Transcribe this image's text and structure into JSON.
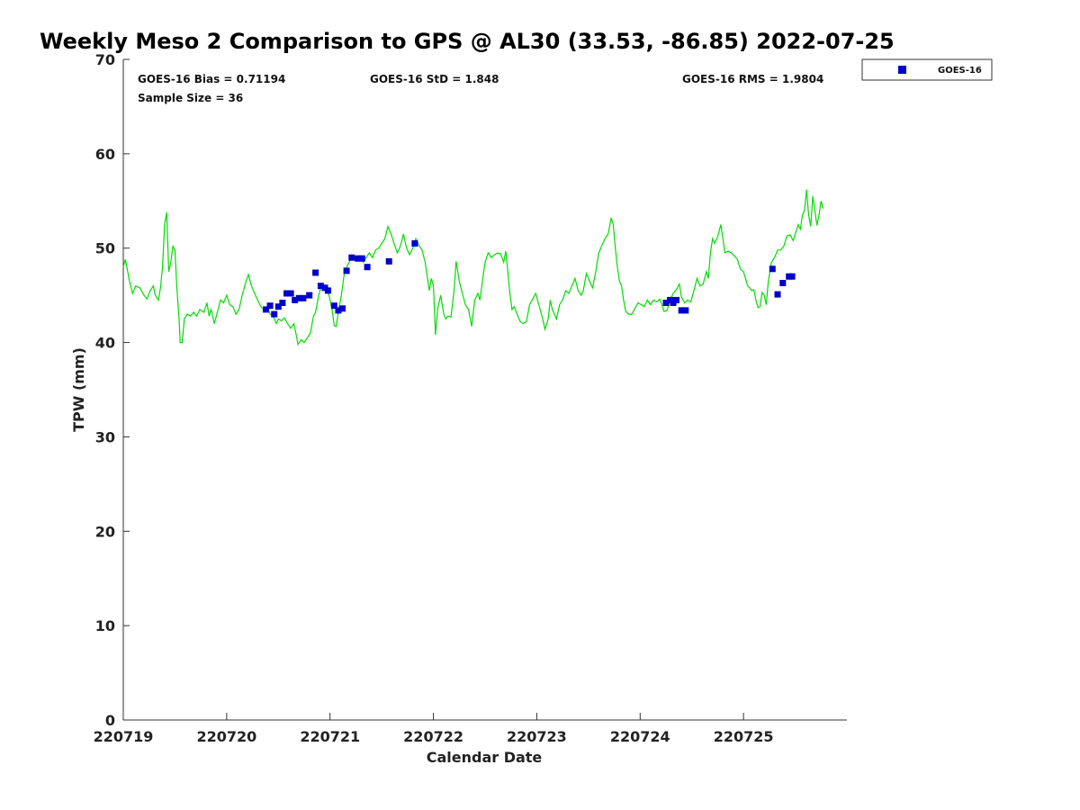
{
  "chart_data": {
    "type": "scatter",
    "title": "Weekly Meso 2 Comparison to GPS @ AL30 (33.53, -86.85) 2022-07-25",
    "xlabel": "Calendar Date",
    "ylabel": "TPW (mm)",
    "xlim": [
      0,
      7
    ],
    "ylim": [
      0,
      70
    ],
    "x_ticks": [
      0,
      1,
      2,
      3,
      4,
      5,
      6
    ],
    "x_tick_labels": [
      "220719",
      "220720",
      "220721",
      "220722",
      "220723",
      "220724",
      "220725"
    ],
    "y_ticks": [
      0,
      10,
      20,
      30,
      40,
      50,
      60,
      70
    ],
    "y_tick_labels": [
      "0",
      "10",
      "20",
      "30",
      "40",
      "50",
      "60",
      "70"
    ],
    "x_unit_note": "x values are days after 2022-07-19 00Z",
    "grid": false,
    "legend_position": "top-right (outside plot)",
    "stats": {
      "bias": "GOES-16 Bias = 0.71194",
      "std": "GOES-16 StD = 1.848",
      "rms": "GOES-16 RMS = 1.9804",
      "n": "Sample Size = 36"
    },
    "series": [
      {
        "name": "GPS",
        "type": "line",
        "color": "#00dd00",
        "points": [
          [
            0.0,
            48.0
          ],
          [
            0.02,
            48.8
          ],
          [
            0.06,
            46.5
          ],
          [
            0.09,
            45.2
          ],
          [
            0.12,
            46.0
          ],
          [
            0.16,
            45.8
          ],
          [
            0.2,
            45.0
          ],
          [
            0.23,
            44.6
          ],
          [
            0.26,
            45.5
          ],
          [
            0.29,
            46.0
          ],
          [
            0.31,
            45.0
          ],
          [
            0.34,
            44.5
          ],
          [
            0.36,
            45.8
          ],
          [
            0.38,
            48.0
          ],
          [
            0.4,
            52.5
          ],
          [
            0.42,
            53.8
          ],
          [
            0.44,
            47.5
          ],
          [
            0.46,
            48.5
          ],
          [
            0.48,
            50.2
          ],
          [
            0.5,
            49.8
          ],
          [
            0.52,
            45.5
          ],
          [
            0.54,
            42.5
          ],
          [
            0.55,
            40.0
          ],
          [
            0.57,
            40.0
          ],
          [
            0.59,
            42.5
          ],
          [
            0.62,
            43.0
          ],
          [
            0.65,
            42.8
          ],
          [
            0.68,
            43.2
          ],
          [
            0.71,
            42.8
          ],
          [
            0.74,
            43.5
          ],
          [
            0.78,
            43.2
          ],
          [
            0.81,
            44.2
          ],
          [
            0.83,
            42.8
          ],
          [
            0.85,
            43.5
          ],
          [
            0.88,
            42.0
          ],
          [
            0.91,
            43.2
          ],
          [
            0.94,
            44.5
          ],
          [
            0.97,
            44.2
          ],
          [
            1.0,
            45.0
          ],
          [
            1.03,
            44.0
          ],
          [
            1.06,
            43.8
          ],
          [
            1.09,
            43.0
          ],
          [
            1.12,
            43.5
          ],
          [
            1.15,
            45.0
          ],
          [
            1.18,
            46.2
          ],
          [
            1.21,
            47.2
          ],
          [
            1.24,
            46.0
          ],
          [
            1.27,
            45.2
          ],
          [
            1.3,
            44.5
          ],
          [
            1.33,
            43.8
          ],
          [
            1.36,
            43.5
          ],
          [
            1.39,
            43.8
          ],
          [
            1.42,
            43.0
          ],
          [
            1.45,
            42.8
          ],
          [
            1.48,
            42.0
          ],
          [
            1.5,
            42.5
          ],
          [
            1.53,
            42.3
          ],
          [
            1.56,
            42.6
          ],
          [
            1.59,
            42.0
          ],
          [
            1.62,
            41.5
          ],
          [
            1.65,
            42.0
          ],
          [
            1.67,
            41.0
          ],
          [
            1.69,
            39.8
          ],
          [
            1.72,
            40.3
          ],
          [
            1.75,
            40.0
          ],
          [
            1.78,
            40.5
          ],
          [
            1.81,
            41.0
          ],
          [
            1.84,
            42.8
          ],
          [
            1.86,
            43.2
          ],
          [
            1.89,
            45.0
          ],
          [
            1.92,
            46.2
          ],
          [
            1.95,
            46.0
          ],
          [
            1.98,
            45.5
          ],
          [
            2.0,
            44.5
          ],
          [
            2.02,
            43.5
          ],
          [
            2.04,
            41.8
          ],
          [
            2.06,
            41.7
          ],
          [
            2.08,
            43.2
          ],
          [
            2.11,
            45.0
          ],
          [
            2.14,
            47.5
          ],
          [
            2.17,
            48.2
          ],
          [
            2.2,
            48.8
          ],
          [
            2.23,
            49.2
          ],
          [
            2.26,
            48.8
          ],
          [
            2.29,
            49.0
          ],
          [
            2.32,
            48.5
          ],
          [
            2.35,
            49.0
          ],
          [
            2.38,
            49.5
          ],
          [
            2.41,
            49.0
          ],
          [
            2.44,
            49.8
          ],
          [
            2.47,
            50.0
          ],
          [
            2.5,
            50.5
          ],
          [
            2.53,
            51.0
          ],
          [
            2.56,
            52.3
          ],
          [
            2.59,
            51.5
          ],
          [
            2.62,
            50.5
          ],
          [
            2.65,
            49.5
          ],
          [
            2.68,
            50.2
          ],
          [
            2.71,
            51.5
          ],
          [
            2.74,
            50.0
          ],
          [
            2.77,
            49.3
          ],
          [
            2.8,
            50.0
          ],
          [
            2.83,
            51.0
          ],
          [
            2.86,
            50.3
          ],
          [
            2.89,
            49.8
          ],
          [
            2.92,
            48.5
          ],
          [
            2.94,
            47.0
          ],
          [
            2.96,
            45.5
          ],
          [
            2.98,
            46.8
          ],
          [
            3.0,
            46.0
          ],
          [
            3.02,
            40.8
          ],
          [
            3.04,
            43.5
          ],
          [
            3.07,
            45.0
          ],
          [
            3.1,
            43.0
          ],
          [
            3.12,
            42.5
          ],
          [
            3.14,
            42.8
          ],
          [
            3.17,
            42.7
          ],
          [
            3.2,
            45.5
          ],
          [
            3.22,
            48.6
          ],
          [
            3.25,
            46.5
          ],
          [
            3.28,
            45.2
          ],
          [
            3.31,
            44.0
          ],
          [
            3.34,
            43.5
          ],
          [
            3.37,
            41.7
          ],
          [
            3.4,
            44.5
          ],
          [
            3.43,
            45.2
          ],
          [
            3.45,
            44.5
          ],
          [
            3.48,
            47.0
          ],
          [
            3.5,
            48.5
          ],
          [
            3.53,
            49.5
          ],
          [
            3.56,
            49.0
          ],
          [
            3.59,
            49.3
          ],
          [
            3.62,
            49.5
          ],
          [
            3.65,
            49.4
          ],
          [
            3.68,
            48.5
          ],
          [
            3.7,
            49.7
          ],
          [
            3.72,
            47.5
          ],
          [
            3.74,
            45.2
          ],
          [
            3.76,
            43.5
          ],
          [
            3.78,
            43.8
          ],
          [
            3.81,
            43.0
          ],
          [
            3.84,
            42.2
          ],
          [
            3.87,
            42.0
          ],
          [
            3.9,
            42.2
          ],
          [
            3.93,
            44.0
          ],
          [
            3.96,
            44.6
          ],
          [
            3.99,
            45.2
          ],
          [
            4.02,
            44.0
          ],
          [
            4.05,
            42.8
          ],
          [
            4.08,
            41.4
          ],
          [
            4.11,
            42.5
          ],
          [
            4.13,
            44.5
          ],
          [
            4.15,
            43.5
          ],
          [
            4.17,
            43.0
          ],
          [
            4.19,
            42.5
          ],
          [
            4.22,
            44.0
          ],
          [
            4.25,
            44.5
          ],
          [
            4.28,
            45.5
          ],
          [
            4.31,
            45.2
          ],
          [
            4.34,
            46.0
          ],
          [
            4.37,
            46.8
          ],
          [
            4.4,
            45.5
          ],
          [
            4.43,
            45.0
          ],
          [
            4.45,
            45.5
          ],
          [
            4.48,
            47.3
          ],
          [
            4.51,
            46.5
          ],
          [
            4.54,
            45.8
          ],
          [
            4.57,
            47.5
          ],
          [
            4.6,
            49.5
          ],
          [
            4.63,
            50.3
          ],
          [
            4.66,
            51.0
          ],
          [
            4.69,
            51.5
          ],
          [
            4.72,
            53.2
          ],
          [
            4.74,
            52.5
          ],
          [
            4.76,
            50.0
          ],
          [
            4.78,
            48.0
          ],
          [
            4.8,
            46.5
          ],
          [
            4.82,
            46.0
          ],
          [
            4.84,
            44.5
          ],
          [
            4.86,
            43.3
          ],
          [
            4.89,
            43.0
          ],
          [
            4.92,
            43.0
          ],
          [
            4.95,
            43.6
          ],
          [
            4.98,
            44.2
          ],
          [
            5.01,
            44.0
          ],
          [
            5.04,
            43.8
          ],
          [
            5.07,
            44.5
          ],
          [
            5.1,
            44.0
          ],
          [
            5.13,
            44.5
          ],
          [
            5.16,
            44.3
          ],
          [
            5.19,
            44.6
          ],
          [
            5.21,
            44.0
          ],
          [
            5.23,
            43.3
          ],
          [
            5.26,
            43.4
          ],
          [
            5.29,
            44.5
          ],
          [
            5.32,
            45.2
          ],
          [
            5.35,
            45.6
          ],
          [
            5.38,
            46.2
          ],
          [
            5.4,
            44.8
          ],
          [
            5.43,
            44.2
          ],
          [
            5.46,
            44.5
          ],
          [
            5.49,
            44.3
          ],
          [
            5.52,
            45.5
          ],
          [
            5.55,
            46.8
          ],
          [
            5.58,
            46.0
          ],
          [
            5.61,
            46.2
          ],
          [
            5.64,
            47.5
          ],
          [
            5.66,
            46.8
          ],
          [
            5.68,
            49.5
          ],
          [
            5.7,
            51.0
          ],
          [
            5.72,
            50.5
          ],
          [
            5.75,
            51.2
          ],
          [
            5.78,
            52.5
          ],
          [
            5.8,
            51.0
          ],
          [
            5.82,
            49.5
          ],
          [
            5.85,
            49.7
          ],
          [
            5.88,
            49.5
          ],
          [
            5.91,
            49.2
          ],
          [
            5.94,
            48.8
          ],
          [
            5.97,
            47.8
          ],
          [
            6.0,
            47.5
          ],
          [
            6.02,
            46.8
          ],
          [
            6.04,
            46.0
          ],
          [
            6.06,
            45.8
          ],
          [
            6.08,
            45.5
          ],
          [
            6.1,
            45.6
          ],
          [
            6.12,
            44.5
          ],
          [
            6.14,
            43.7
          ],
          [
            6.16,
            43.8
          ],
          [
            6.18,
            45.3
          ],
          [
            6.2,
            45.0
          ],
          [
            6.22,
            44.0
          ],
          [
            6.24,
            46.5
          ],
          [
            6.27,
            48.5
          ],
          [
            6.3,
            49.0
          ],
          [
            6.33,
            49.8
          ],
          [
            6.36,
            49.8
          ],
          [
            6.39,
            50.2
          ],
          [
            6.42,
            51.3
          ],
          [
            6.45,
            51.4
          ],
          [
            6.48,
            50.8
          ],
          [
            6.5,
            51.5
          ],
          [
            6.53,
            52.5
          ],
          [
            6.55,
            52.0
          ],
          [
            6.57,
            53.5
          ],
          [
            6.59,
            54.0
          ],
          [
            6.61,
            56.2
          ],
          [
            6.63,
            53.5
          ],
          [
            6.65,
            52.3
          ],
          [
            6.67,
            55.5
          ],
          [
            6.69,
            54.0
          ],
          [
            6.71,
            52.4
          ],
          [
            6.73,
            53.5
          ],
          [
            6.75,
            55.0
          ],
          [
            6.77,
            54.2
          ]
        ]
      },
      {
        "name": "GOES-16",
        "type": "scatter",
        "color": "#0000cc",
        "points": [
          [
            1.38,
            43.5
          ],
          [
            1.42,
            43.9
          ],
          [
            1.46,
            43.0
          ],
          [
            1.5,
            43.8
          ],
          [
            1.54,
            44.2
          ],
          [
            1.58,
            45.2
          ],
          [
            1.62,
            45.2
          ],
          [
            1.66,
            44.5
          ],
          [
            1.7,
            44.7
          ],
          [
            1.74,
            44.7
          ],
          [
            1.8,
            45.0
          ],
          [
            1.86,
            47.4
          ],
          [
            1.91,
            46.0
          ],
          [
            1.95,
            45.8
          ],
          [
            1.98,
            45.5
          ],
          [
            2.04,
            43.9
          ],
          [
            2.08,
            43.4
          ],
          [
            2.12,
            43.6
          ],
          [
            2.16,
            47.6
          ],
          [
            2.21,
            49.0
          ],
          [
            2.27,
            48.9
          ],
          [
            2.31,
            48.9
          ],
          [
            2.36,
            48.0
          ],
          [
            2.57,
            48.6
          ],
          [
            2.82,
            50.5
          ],
          [
            5.25,
            44.2
          ],
          [
            5.29,
            44.5
          ],
          [
            5.32,
            44.2
          ],
          [
            5.35,
            44.5
          ],
          [
            5.4,
            43.4
          ],
          [
            5.44,
            43.4
          ],
          [
            6.28,
            47.8
          ],
          [
            6.33,
            45.1
          ],
          [
            6.38,
            46.3
          ],
          [
            6.44,
            47.0
          ],
          [
            6.47,
            47.0
          ]
        ]
      }
    ]
  },
  "legend": {
    "label": "GOES-16",
    "marker_color": "#0000cc"
  }
}
